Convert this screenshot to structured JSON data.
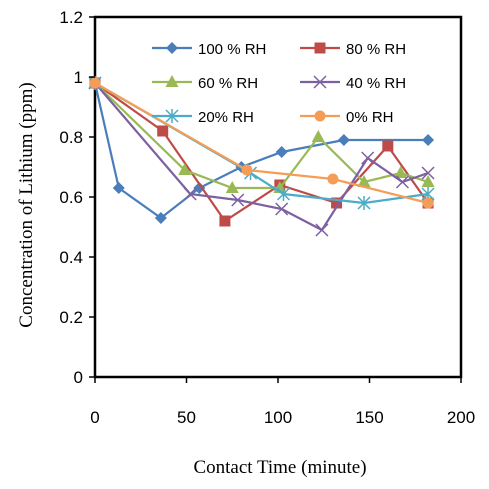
{
  "chart_data": {
    "type": "line",
    "xlabel": "Contact Time (minute)",
    "ylabel": "Concentration of Lithium  (ppm)",
    "xlim": [
      0,
      200
    ],
    "ylim": [
      0,
      1.2
    ],
    "xticks": [
      "0",
      "50",
      "100",
      "150",
      "200"
    ],
    "yticks": [
      "0",
      "0.2",
      "0.4",
      "0.6",
      "0.8",
      "1",
      "1.2"
    ],
    "grid": false,
    "legend_position": "top-right",
    "series": [
      {
        "name": "100 % RH",
        "color": "#4a7ebb",
        "marker": "diamond",
        "x": [
          0,
          13,
          36,
          57,
          80,
          102,
          136,
          182
        ],
        "y": [
          0.98,
          0.63,
          0.53,
          0.63,
          0.7,
          0.75,
          0.79,
          0.79
        ]
      },
      {
        "name": "80 % RH",
        "color": "#be4b48",
        "marker": "square",
        "x": [
          0,
          37,
          71,
          101,
          132,
          160,
          182
        ],
        "y": [
          0.98,
          0.82,
          0.52,
          0.64,
          0.58,
          0.77,
          0.58
        ]
      },
      {
        "name": "60 % RH",
        "color": "#98b954",
        "marker": "triangle",
        "x": [
          0,
          49,
          75,
          101,
          122,
          147,
          167,
          182
        ],
        "y": [
          0.98,
          0.69,
          0.63,
          0.63,
          0.8,
          0.65,
          0.68,
          0.65
        ]
      },
      {
        "name": "40 % RH",
        "color": "#7d60a0",
        "marker": "x",
        "x": [
          0,
          52,
          78,
          102,
          124,
          149,
          168,
          182
        ],
        "y": [
          0.98,
          0.61,
          0.59,
          0.56,
          0.49,
          0.73,
          0.65,
          0.68
        ]
      },
      {
        "name": "20% RH",
        "color": "#4bacc6",
        "marker": "star",
        "x": [
          0,
          85,
          103,
          147,
          182
        ],
        "y": [
          0.98,
          0.68,
          0.61,
          0.58,
          0.61
        ]
      },
      {
        "name": "0% RH",
        "color": "#f59d56",
        "marker": "circle",
        "x": [
          0,
          83,
          130,
          182
        ],
        "y": [
          0.98,
          0.69,
          0.66,
          0.58
        ]
      }
    ]
  }
}
